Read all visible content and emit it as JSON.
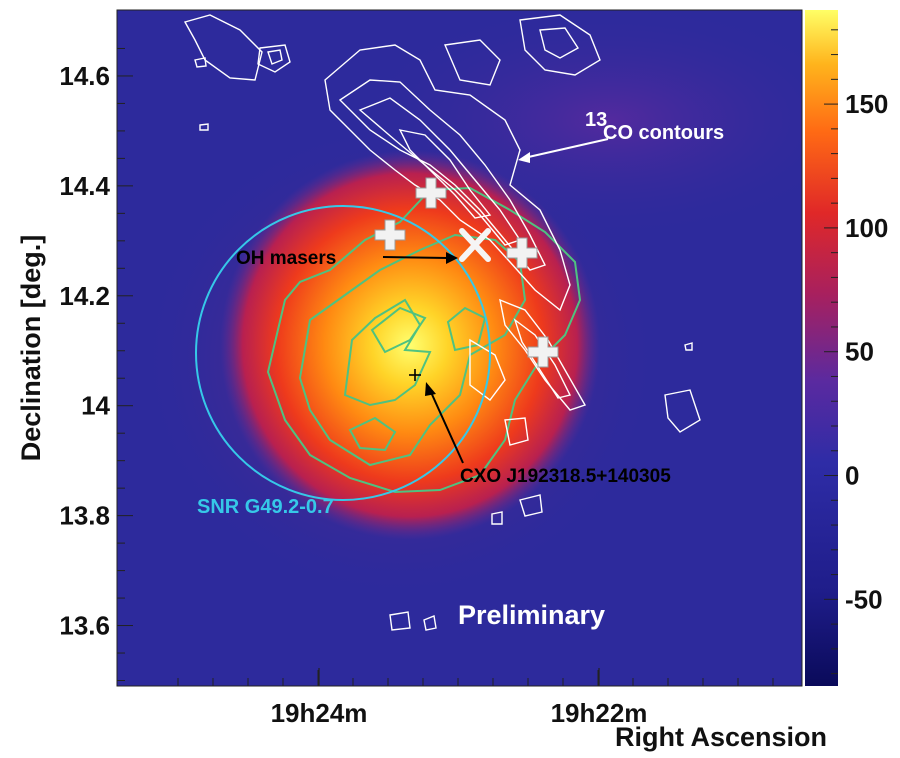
{
  "chart_data": {
    "type": "heatmap",
    "title": "",
    "xlabel": "Right Ascension",
    "ylabel": "Declination [deg.]",
    "x_ticks": [
      "19h24m",
      "19h22m"
    ],
    "y_ticks": [
      "14.6",
      "14.4",
      "14.2",
      "14",
      "13.8",
      "13.6"
    ],
    "y_tick_values": [
      14.6,
      14.4,
      14.2,
      14.0,
      13.8,
      13.6
    ],
    "ylim": [
      13.49,
      14.72
    ],
    "colorbar": {
      "range": [
        -85,
        188
      ],
      "ticks": [
        "150",
        "100",
        "50",
        "0",
        "-50"
      ],
      "tick_values": [
        150,
        100,
        50,
        0,
        -50
      ],
      "colormap": [
        "#0a0a5a",
        "#2b2aa6",
        "#6a2aa0",
        "#c0203a",
        "#f0401a",
        "#ff8a10",
        "#ffd020",
        "#ffff60"
      ]
    },
    "annotations": {
      "co_label_sup": "13",
      "co_label": "CO contours",
      "oh_masers": "OH masers",
      "cxo": "CXO J192318.5+140305",
      "snr": "SNR G49.2-0.7",
      "preliminary": "Preliminary"
    },
    "markers": {
      "oh_maser_crosses": [
        {
          "ra": "19h23m15s",
          "dec": 14.38
        },
        {
          "ra": "19h23m40s",
          "dec": 14.3
        },
        {
          "ra": "19h22m32s",
          "dec": 14.27
        },
        {
          "ra": "19h22m19s",
          "dec": 14.09
        }
      ],
      "x_marker": {
        "ra": "19h22m55s",
        "dec": 14.29
      },
      "cxo_marker": {
        "ra": "19h23m18.5s",
        "dec": 14.05
      }
    },
    "colors": {
      "background": "#2d2a9c",
      "co_contours": "#ffffff",
      "green_contours": "#4fc280",
      "snr_circle": "#36c8e8"
    }
  }
}
